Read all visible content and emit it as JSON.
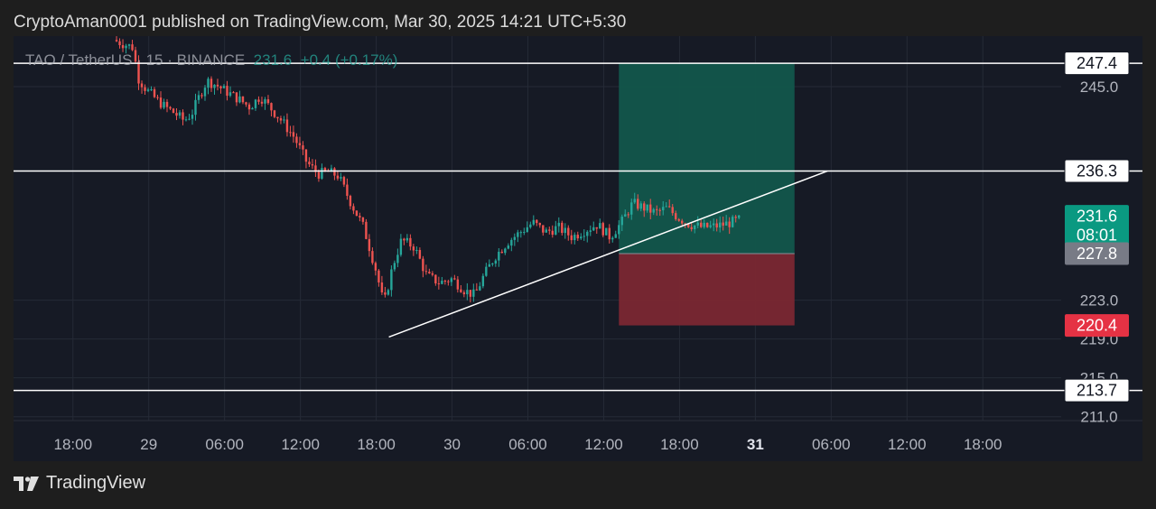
{
  "header": {
    "published_text": "CryptoAman0001 published on TradingView.com, Mar 30, 2025 14:21 UTC+5:30"
  },
  "symbol": {
    "pair": "TAO / TetherUS",
    "separator": "·",
    "interval": "15",
    "exchange": "BINANCE",
    "price": "231.6",
    "change": "+0.4 (+0.17%)"
  },
  "footer": {
    "brand": "TradingView",
    "logo_icon": "tradingview-logo-icon"
  },
  "colors": {
    "background": "#161a25",
    "grid": "#252a36",
    "up": "#26a69a",
    "down": "#ef5350",
    "profit_zone": "#12564b",
    "loss_zone": "#7a2731",
    "level_line": "#ffffff",
    "text": "#b2b5be",
    "current_price_label": "#0a9981",
    "entry_label": "#787b86",
    "stop_label": "#e53244"
  },
  "chart_data": {
    "type": "candlestick",
    "symbol": "TAO / TetherUS",
    "interval": "15",
    "exchange": "BINANCE",
    "timezone": "UTC+5:30",
    "x_ticks": [
      "18:00",
      "29",
      "06:00",
      "12:00",
      "18:00",
      "30",
      "06:00",
      "12:00",
      "18:00",
      "31",
      "06:00",
      "12:00",
      "18:00"
    ],
    "x_tick_hours": [
      0,
      6,
      12,
      18,
      24,
      30,
      36,
      42,
      48,
      54,
      60,
      66,
      72
    ],
    "x_tick_bold": [
      "31"
    ],
    "x_range_hours": [
      -4.7,
      78.2
    ],
    "y_ticks": [
      211.0,
      215.0,
      219.0,
      223.0,
      245.0
    ],
    "y_range": [
      210.6,
      250.2
    ],
    "grid": true,
    "price_path": [
      [
        3.2,
        249.8
      ],
      [
        4.8,
        249.0
      ],
      [
        5.1,
        246.0
      ],
      [
        5.8,
        244.7
      ],
      [
        6.5,
        243.8
      ],
      [
        7.2,
        243.0
      ],
      [
        8.0,
        242.3
      ],
      [
        8.8,
        241.5
      ],
      [
        9.4,
        242.2
      ],
      [
        10.0,
        244.0
      ],
      [
        10.6,
        245.6
      ],
      [
        11.3,
        245.2
      ],
      [
        12.0,
        244.6
      ],
      [
        13.0,
        243.8
      ],
      [
        14.0,
        242.9
      ],
      [
        14.8,
        244.0
      ],
      [
        15.5,
        243.0
      ],
      [
        16.5,
        241.5
      ],
      [
        17.5,
        239.8
      ],
      [
        18.5,
        237.2
      ],
      [
        19.4,
        236.0
      ],
      [
        20.2,
        236.2
      ],
      [
        21.0,
        235.8
      ],
      [
        22.0,
        233.0
      ],
      [
        23.0,
        230.5
      ],
      [
        24.0,
        226.0
      ],
      [
        24.6,
        222.5
      ],
      [
        25.3,
        226.5
      ],
      [
        26.0,
        229.2
      ],
      [
        27.0,
        228.5
      ],
      [
        28.0,
        225.5
      ],
      [
        29.0,
        224.8
      ],
      [
        30.0,
        225.2
      ],
      [
        31.0,
        224.0
      ],
      [
        31.8,
        223.5
      ],
      [
        32.5,
        225.5
      ],
      [
        33.4,
        227.5
      ],
      [
        34.4,
        229.0
      ],
      [
        35.4,
        230.0
      ],
      [
        36.4,
        231.0
      ],
      [
        37.4,
        230.0
      ],
      [
        38.4,
        230.5
      ],
      [
        39.5,
        229.5
      ],
      [
        40.5,
        230.2
      ],
      [
        41.5,
        230.8
      ],
      [
        42.5,
        229.5
      ],
      [
        43.4,
        231.0
      ],
      [
        44.3,
        233.0
      ],
      [
        45.2,
        232.5
      ],
      [
        46.1,
        232.0
      ],
      [
        47.0,
        232.5
      ],
      [
        47.9,
        231.5
      ],
      [
        48.8,
        230.8
      ],
      [
        49.8,
        230.5
      ],
      [
        50.8,
        230.6
      ],
      [
        51.8,
        230.9
      ],
      [
        52.8,
        231.3
      ]
    ],
    "annotations": {
      "horizontal_levels": [
        247.4,
        236.3,
        213.7
      ],
      "trendline": {
        "from": [
          25.0,
          219.2
        ],
        "to": [
          59.7,
          236.3
        ]
      },
      "long_position": {
        "entry": 227.8,
        "target": 247.4,
        "stop": 220.4,
        "from_hours": 43.2,
        "to_hours": 57.1
      }
    },
    "price_labels": [
      {
        "text": "247.4",
        "kind": "level"
      },
      {
        "text": "236.3",
        "kind": "level"
      },
      {
        "text": "231.6",
        "kind": "current",
        "sub": "08:01"
      },
      {
        "text": "227.8",
        "kind": "entry"
      },
      {
        "text": "220.4",
        "kind": "stop"
      },
      {
        "text": "213.7",
        "kind": "level"
      }
    ]
  }
}
